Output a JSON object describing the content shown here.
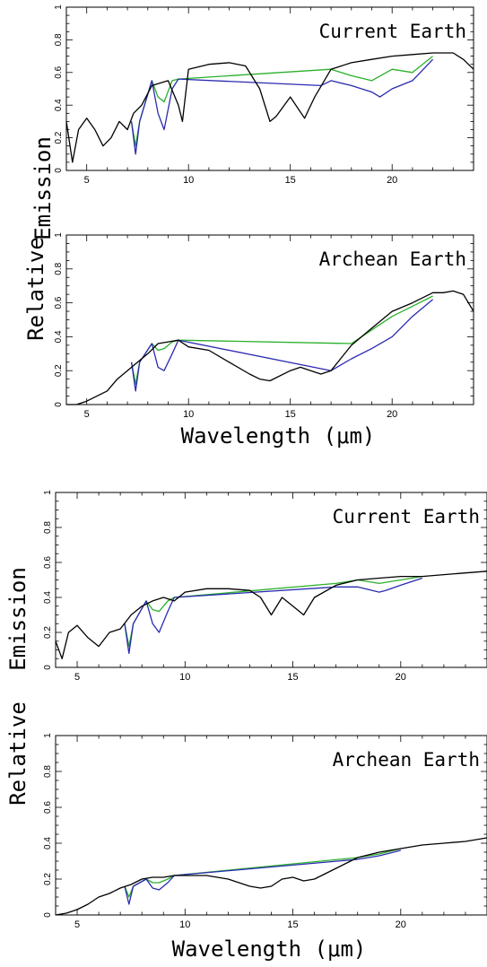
{
  "chart_data": [
    {
      "type": "line",
      "title": "Current Earth",
      "xlabel": "",
      "ylabel": "",
      "xlim": [
        4,
        24
      ],
      "ylim": [
        0,
        1
      ],
      "xticks": [
        "5",
        "10",
        "15",
        "20"
      ],
      "yticks": [
        "0",
        "0.2",
        "0.4",
        "0.6",
        "0.8",
        "1"
      ],
      "series": [
        {
          "color": "#000000",
          "x": [
            4,
            4.3,
            4.6,
            5,
            5.4,
            5.8,
            6.2,
            6.6,
            7,
            7.3,
            7.7,
            8.2,
            9,
            9.5,
            9.7,
            10,
            11,
            12,
            12.8,
            13.5,
            14,
            14.3,
            15,
            15.7,
            16.2,
            17,
            18,
            19,
            20,
            21,
            22,
            23,
            23.5,
            24
          ],
          "y": [
            0.3,
            0.05,
            0.25,
            0.32,
            0.25,
            0.15,
            0.2,
            0.3,
            0.25,
            0.35,
            0.4,
            0.52,
            0.55,
            0.4,
            0.3,
            0.62,
            0.65,
            0.66,
            0.64,
            0.5,
            0.3,
            0.33,
            0.45,
            0.32,
            0.45,
            0.62,
            0.66,
            0.68,
            0.7,
            0.71,
            0.72,
            0.72,
            0.68,
            0.62
          ]
        },
        {
          "color": "#2ab02a",
          "x": [
            7.2,
            7.4,
            7.6,
            8.2,
            8.5,
            8.8,
            9.2,
            9.5,
            17,
            18,
            19,
            20,
            21,
            22
          ],
          "y": [
            0.3,
            0.15,
            0.3,
            0.55,
            0.45,
            0.42,
            0.55,
            0.56,
            0.62,
            0.58,
            0.55,
            0.62,
            0.6,
            0.7
          ]
        },
        {
          "color": "#2a2ab0",
          "x": [
            7.2,
            7.4,
            7.6,
            8.2,
            8.5,
            8.8,
            9.2,
            9.5,
            16.5,
            17,
            18,
            19,
            19.4,
            20,
            21,
            22
          ],
          "y": [
            0.3,
            0.1,
            0.3,
            0.55,
            0.35,
            0.25,
            0.5,
            0.56,
            0.52,
            0.55,
            0.52,
            0.48,
            0.45,
            0.5,
            0.55,
            0.68
          ]
        }
      ]
    },
    {
      "type": "line",
      "title": "Archean Earth",
      "xlabel": "Wavelength (μm)",
      "ylabel": "",
      "xlim": [
        4,
        24
      ],
      "ylim": [
        0,
        1
      ],
      "xticks": [
        "5",
        "10",
        "15",
        "20"
      ],
      "yticks": [
        "0",
        "0.2",
        "0.4",
        "0.6",
        "0.8",
        "1"
      ],
      "series": [
        {
          "color": "#000000",
          "x": [
            4,
            4.5,
            5,
            5.5,
            6,
            6.5,
            7,
            7.5,
            8,
            8.5,
            9,
            9.5,
            10,
            11,
            12,
            13,
            13.5,
            14,
            15,
            15.5,
            16,
            16.5,
            17,
            18,
            19,
            20,
            21,
            22,
            22.5,
            23,
            23.5,
            24
          ],
          "y": [
            0,
            0.0,
            0.02,
            0.05,
            0.08,
            0.15,
            0.2,
            0.25,
            0.3,
            0.36,
            0.37,
            0.38,
            0.34,
            0.32,
            0.25,
            0.18,
            0.15,
            0.14,
            0.2,
            0.22,
            0.2,
            0.18,
            0.2,
            0.35,
            0.45,
            0.55,
            0.6,
            0.66,
            0.66,
            0.67,
            0.65,
            0.55
          ]
        },
        {
          "color": "#2ab02a",
          "x": [
            7.2,
            7.4,
            7.6,
            8.2,
            8.5,
            8.8,
            9.2,
            9.5,
            18,
            19,
            20,
            21,
            22
          ],
          "y": [
            0.25,
            0.12,
            0.25,
            0.36,
            0.32,
            0.33,
            0.37,
            0.38,
            0.36,
            0.44,
            0.52,
            0.58,
            0.64
          ]
        },
        {
          "color": "#2a2ab0",
          "x": [
            7.2,
            7.4,
            7.6,
            8.2,
            8.5,
            8.8,
            9.2,
            9.5,
            17,
            18,
            19,
            20,
            21,
            22
          ],
          "y": [
            0.25,
            0.08,
            0.25,
            0.36,
            0.22,
            0.2,
            0.3,
            0.38,
            0.2,
            0.27,
            0.33,
            0.4,
            0.52,
            0.62
          ]
        }
      ]
    },
    {
      "type": "line",
      "title": "Current Earth",
      "xlabel": "",
      "ylabel": "",
      "xlim": [
        4,
        24
      ],
      "ylim": [
        0,
        1
      ],
      "xticks": [
        "5",
        "10",
        "15",
        "20"
      ],
      "yticks": [
        "0",
        "0.2",
        "0.4",
        "0.6",
        "0.8",
        "1"
      ],
      "series": [
        {
          "color": "#000000",
          "x": [
            4,
            4.3,
            4.6,
            5,
            5.5,
            6,
            6.5,
            7,
            7.5,
            8,
            8.5,
            9,
            9.5,
            10,
            11,
            12,
            13,
            13.5,
            14,
            14.5,
            15,
            15.5,
            16,
            17,
            18,
            19,
            20,
            21,
            22,
            23,
            24
          ],
          "y": [
            0.15,
            0.05,
            0.2,
            0.24,
            0.17,
            0.12,
            0.2,
            0.22,
            0.3,
            0.35,
            0.38,
            0.4,
            0.38,
            0.43,
            0.45,
            0.45,
            0.44,
            0.4,
            0.3,
            0.4,
            0.35,
            0.3,
            0.4,
            0.47,
            0.5,
            0.51,
            0.52,
            0.52,
            0.53,
            0.54,
            0.55
          ]
        },
        {
          "color": "#2ab02a",
          "x": [
            7.2,
            7.4,
            7.6,
            8.2,
            8.5,
            8.8,
            9.2,
            9.5,
            17,
            18,
            19,
            20,
            21
          ],
          "y": [
            0.25,
            0.12,
            0.25,
            0.38,
            0.33,
            0.32,
            0.38,
            0.4,
            0.48,
            0.5,
            0.48,
            0.5,
            0.52
          ]
        },
        {
          "color": "#2a2ab0",
          "x": [
            7.2,
            7.4,
            7.6,
            8.2,
            8.5,
            8.8,
            9.2,
            9.5,
            17,
            18,
            19,
            19.3,
            20,
            21
          ],
          "y": [
            0.25,
            0.08,
            0.25,
            0.38,
            0.25,
            0.2,
            0.32,
            0.4,
            0.46,
            0.46,
            0.43,
            0.44,
            0.47,
            0.51
          ]
        }
      ]
    },
    {
      "type": "line",
      "title": "Archean Earth",
      "xlabel": "Wavelength (μm)",
      "ylabel": "",
      "xlim": [
        4,
        24
      ],
      "ylim": [
        0,
        1
      ],
      "xticks": [
        "5",
        "10",
        "15",
        "20"
      ],
      "yticks": [
        "0",
        "0.2",
        "0.4",
        "0.6",
        "0.8",
        "1"
      ],
      "series": [
        {
          "color": "#000000",
          "x": [
            4,
            4.5,
            5,
            5.5,
            6,
            6.5,
            7,
            7.5,
            8,
            8.5,
            9,
            9.5,
            10,
            11,
            12,
            13,
            13.5,
            14,
            14.5,
            15,
            15.5,
            16,
            17,
            18,
            19,
            20,
            21,
            22,
            23,
            24
          ],
          "y": [
            0,
            0.01,
            0.03,
            0.06,
            0.1,
            0.12,
            0.15,
            0.17,
            0.2,
            0.21,
            0.21,
            0.22,
            0.22,
            0.22,
            0.2,
            0.16,
            0.15,
            0.16,
            0.2,
            0.21,
            0.19,
            0.2,
            0.26,
            0.32,
            0.35,
            0.37,
            0.39,
            0.4,
            0.41,
            0.43
          ]
        },
        {
          "color": "#2ab02a",
          "x": [
            7.2,
            7.4,
            7.6,
            8.2,
            8.5,
            8.8,
            9.2,
            9.5,
            18,
            19,
            20
          ],
          "y": [
            0.16,
            0.1,
            0.16,
            0.2,
            0.18,
            0.18,
            0.2,
            0.22,
            0.32,
            0.34,
            0.37
          ]
        },
        {
          "color": "#2a2ab0",
          "x": [
            7.2,
            7.4,
            7.6,
            8.2,
            8.5,
            8.8,
            9.2,
            9.5,
            18,
            19,
            20
          ],
          "y": [
            0.16,
            0.06,
            0.16,
            0.2,
            0.15,
            0.14,
            0.18,
            0.22,
            0.31,
            0.33,
            0.36
          ]
        }
      ]
    }
  ],
  "shared_labels": {
    "top_ylabel_left": "Emission",
    "top_ylabel_right": "Relative",
    "top_xlabel": "Wavelength (μm)",
    "bottom_ylabel_left": "Emission",
    "bottom_ylabel_right": "Relative",
    "bottom_xlabel": "Wavelength (μm)"
  }
}
